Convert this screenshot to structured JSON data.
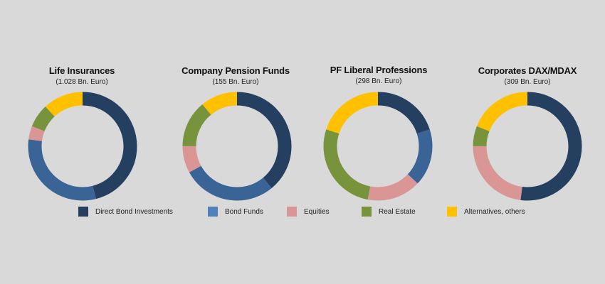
{
  "colors": {
    "background": "#d9d9d9",
    "direct_bond_investments": "#243f60",
    "bond_funds": "#3a6496",
    "bond_funds_legend": "#4f81bd",
    "equities": "#d99694",
    "real_estate": "#77933c",
    "alternatives_others": "#ffc000"
  },
  "chart_data": [
    {
      "type": "pie",
      "title": "Life Insurances",
      "subtitle": "(1.028 Bn. Euro)",
      "categories": [
        "Direct Bond Investments",
        "Bond Funds",
        "Equities",
        "Real Estate",
        "Alternatives, others"
      ],
      "values": [
        46,
        31,
        4,
        7,
        12
      ]
    },
    {
      "type": "pie",
      "title": "Company Pension Funds",
      "subtitle": "(155 Bn. Euro)",
      "categories": [
        "Direct Bond Investments",
        "Bond Funds",
        "Equities",
        "Real Estate",
        "Alternatives, others"
      ],
      "values": [
        39,
        28,
        8,
        14,
        11
      ]
    },
    {
      "type": "pie",
      "title": "PF Liberal Professions",
      "subtitle": "(298 Bn. Euro)",
      "categories": [
        "Direct Bond Investments",
        "Bond Funds",
        "Equities",
        "Real Estate",
        "Alternatives, others"
      ],
      "values": [
        20,
        17,
        16,
        27,
        20
      ]
    },
    {
      "type": "pie",
      "title": "Corporates DAX/MDAX",
      "subtitle": "(309 Bn. Euro)",
      "categories": [
        "Direct Bond Investments",
        "Bond Funds",
        "Equities",
        "Real Estate",
        "Alternatives, others"
      ],
      "values": [
        52,
        0,
        23,
        6,
        19
      ]
    }
  ],
  "legend": [
    {
      "label": "Direct Bond Investments",
      "color": "#243f60"
    },
    {
      "label": "Bond Funds",
      "color": "#4f81bd"
    },
    {
      "label": "Equities",
      "color": "#d99694"
    },
    {
      "label": "Real Estate",
      "color": "#77933c"
    },
    {
      "label": "Alternatives, others",
      "color": "#ffc000"
    }
  ]
}
